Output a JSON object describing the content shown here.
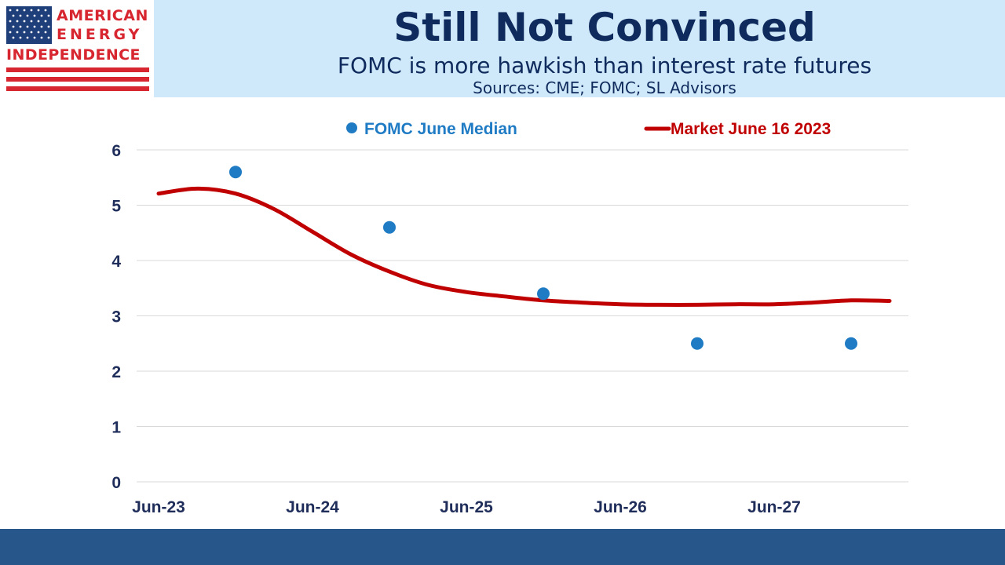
{
  "logo": {
    "line1": "AMERICAN",
    "line2": "ENERGY",
    "line3": "INDEPENDENCE",
    "flag_icon": "us-flag-icon",
    "colors": {
      "red": "#d7262f",
      "blue": "#1f3f7a"
    }
  },
  "header": {
    "title": "Still Not Convinced",
    "subtitle": "FOMC is more hawkish than interest rate futures",
    "sources": "Sources: CME; FOMC; SL Advisors"
  },
  "chart_data": {
    "type": "line",
    "title": "",
    "xlabel": "",
    "ylabel": "",
    "ylim": [
      0,
      6
    ],
    "yticks": [
      "0",
      "1",
      "2",
      "3",
      "4",
      "5",
      "6"
    ],
    "xticks": [
      "Jun-23",
      "Jun-24",
      "Jun-25",
      "Jun-26",
      "Jun-27"
    ],
    "grid": true,
    "legend": "top",
    "series": [
      {
        "name": "FOMC June  Median",
        "kind": "scatter",
        "color": "#1f7bc4",
        "x": [
          "Dec-23",
          "Dec-24",
          "Dec-25",
          "Dec-26",
          "Dec-27"
        ],
        "values": [
          5.6,
          4.6,
          3.4,
          2.5,
          2.5
        ]
      },
      {
        "name": "Market June 16 2023",
        "kind": "line",
        "color": "#c00000",
        "x": [
          "Jun-23",
          "Sep-23",
          "Dec-23",
          "Mar-24",
          "Jun-24",
          "Sep-24",
          "Dec-24",
          "Mar-25",
          "Jun-25",
          "Sep-25",
          "Dec-25",
          "Mar-26",
          "Jun-26",
          "Sep-26",
          "Dec-26",
          "Mar-27",
          "Jun-27",
          "Sep-27",
          "Dec-27",
          "Mar-28"
        ],
        "values": [
          5.21,
          5.3,
          5.21,
          4.93,
          4.52,
          4.11,
          3.8,
          3.56,
          3.43,
          3.35,
          3.28,
          3.24,
          3.21,
          3.2,
          3.2,
          3.21,
          3.21,
          3.24,
          3.28,
          3.27
        ]
      }
    ]
  }
}
